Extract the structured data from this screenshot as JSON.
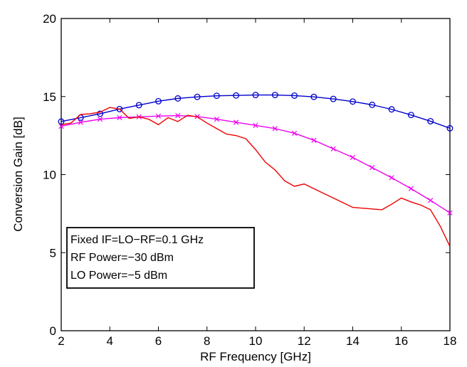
{
  "chart_data": {
    "type": "line",
    "xlabel": "RF Frequency [GHz]",
    "ylabel": "Conversion Gain [dB]",
    "xlim": [
      2,
      18
    ],
    "ylim": [
      0,
      20
    ],
    "xticks": [
      "2",
      "4",
      "6",
      "8",
      "10",
      "12",
      "14",
      "16",
      "18"
    ],
    "yticks": [
      "0",
      "5",
      "10",
      "15",
      "20"
    ],
    "grid": false,
    "annotation_lines": [
      "Fixed IF=LO−RF=0.1 GHz",
      "RF Power=−30 dBm",
      "LO Power=−5 dBm"
    ],
    "series": [
      {
        "color": "#0000cc",
        "marker": "circle",
        "x": [
          2,
          2.8,
          3.6,
          4.4,
          5.2,
          6.0,
          6.8,
          7.6,
          8.4,
          9.2,
          10.0,
          10.8,
          11.6,
          12.4,
          13.2,
          14.0,
          14.8,
          15.6,
          16.4,
          17.2,
          18.0
        ],
        "y": [
          13.4,
          13.65,
          13.9,
          14.2,
          14.45,
          14.7,
          14.88,
          14.98,
          15.05,
          15.07,
          15.1,
          15.1,
          15.06,
          14.98,
          14.85,
          14.68,
          14.47,
          14.18,
          13.82,
          13.42,
          12.97
        ]
      },
      {
        "color": "#ee00ee",
        "marker": "x",
        "x": [
          2,
          2.8,
          3.6,
          4.4,
          5.2,
          6.0,
          6.8,
          7.6,
          8.4,
          9.2,
          10.0,
          10.8,
          11.6,
          12.4,
          13.2,
          14.0,
          14.8,
          15.6,
          16.4,
          17.2,
          18.0
        ],
        "y": [
          13.1,
          13.35,
          13.55,
          13.65,
          13.7,
          13.75,
          13.78,
          13.72,
          13.55,
          13.35,
          13.15,
          12.95,
          12.65,
          12.2,
          11.65,
          11.1,
          10.45,
          9.8,
          9.1,
          8.35,
          7.55
        ]
      },
      {
        "color": "#ee0000",
        "marker": "none",
        "x": [
          2,
          2.4,
          2.8,
          3.2,
          3.6,
          4.0,
          4.4,
          4.8,
          5.2,
          5.6,
          6.0,
          6.4,
          6.8,
          7.2,
          7.6,
          8.0,
          8.4,
          8.8,
          9.2,
          9.6,
          10.0,
          10.4,
          10.8,
          11.2,
          11.6,
          12.0,
          12.4,
          12.8,
          13.2,
          13.6,
          14.0,
          14.4,
          14.8,
          15.2,
          15.6,
          16.0,
          16.4,
          16.8,
          17.2,
          17.6,
          18.0
        ],
        "y": [
          13.2,
          13.3,
          13.85,
          13.9,
          14.0,
          14.3,
          14.2,
          13.6,
          13.7,
          13.55,
          13.2,
          13.65,
          13.4,
          13.8,
          13.7,
          13.3,
          12.95,
          12.6,
          12.5,
          12.3,
          11.6,
          10.8,
          10.3,
          9.6,
          9.25,
          9.4,
          9.1,
          8.8,
          8.5,
          8.2,
          7.9,
          7.85,
          7.8,
          7.75,
          8.1,
          8.5,
          8.25,
          8.05,
          7.75,
          6.7,
          5.4
        ]
      }
    ]
  }
}
